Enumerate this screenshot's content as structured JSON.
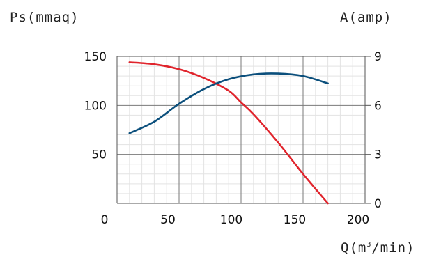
{
  "chart_data": {
    "type": "line",
    "y_left_label": "Ps(mmaq)",
    "y_right_label": "A(amp)",
    "x_label": {
      "prefix": "Q(m",
      "superscript": "3",
      "suffix": "/min)"
    },
    "xlim": [
      0,
      200
    ],
    "ylim_left": [
      0,
      150
    ],
    "ylim_right": [
      0,
      9
    ],
    "x_ticks": [
      "0",
      "50",
      "100",
      "150",
      "200"
    ],
    "y_left_ticks": [
      "50",
      "100",
      "150"
    ],
    "y_right_ticks": [
      "0",
      "3",
      "6",
      "9"
    ],
    "grid": true,
    "series": [
      {
        "axis": "left",
        "color": "#e0242c",
        "x": [
          10,
          30,
          50,
          70,
          90,
          100,
          110,
          130,
          150,
          170
        ],
        "y": [
          144,
          142,
          137,
          128,
          115,
          103,
          91,
          62,
          30,
          0
        ]
      },
      {
        "axis": "right",
        "color": "#0b4f7c",
        "x": [
          10,
          30,
          50,
          70,
          90,
          110,
          130,
          150,
          170
        ],
        "y": [
          4.3,
          5.0,
          6.1,
          7.0,
          7.6,
          7.9,
          7.95,
          7.8,
          7.35
        ]
      }
    ]
  }
}
